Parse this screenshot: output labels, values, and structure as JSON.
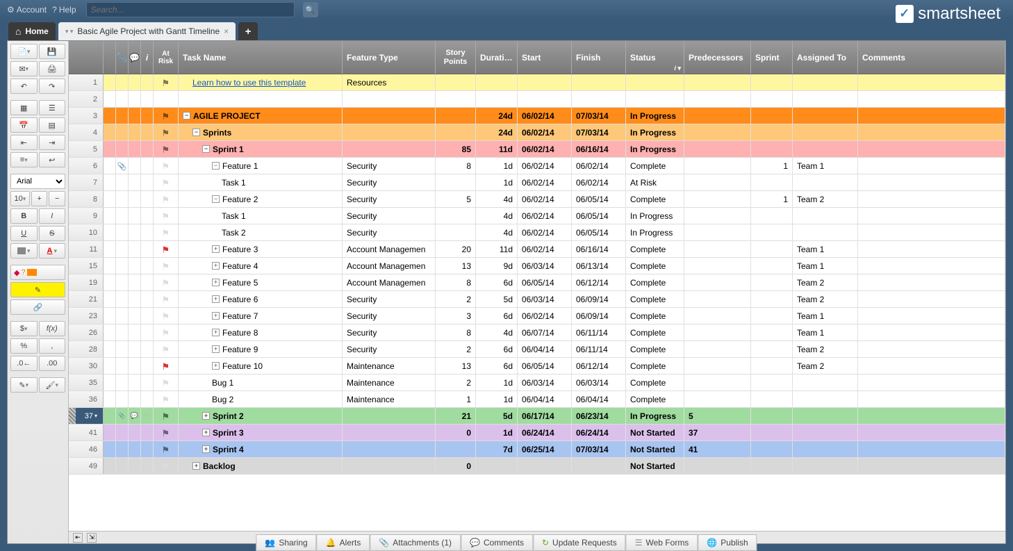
{
  "topbar": {
    "account": "Account",
    "help": "Help",
    "search_placeholder": "Search..."
  },
  "logo_text": "smartsheet",
  "tabs": {
    "home": "Home",
    "sheet": "Basic Agile Project with Gantt Timeline"
  },
  "toolbar": {
    "font": "Arial",
    "size": "10"
  },
  "columns": {
    "atrisk": "At Risk",
    "taskname": "Task Name",
    "feature": "Feature Type",
    "story": "Story Points",
    "duration": "Durati…",
    "start": "Start",
    "finish": "Finish",
    "status": "Status",
    "pred": "Predecessors",
    "sprint": "Sprint",
    "assigned": "Assigned To",
    "comments": "Comments"
  },
  "row_colors": {
    "yellow": "#fff7a0",
    "orange": "#ff8c1a",
    "lightorange": "#ffc878",
    "pink": "#ffb0b0",
    "green": "#a0dba0",
    "purple": "#dcc0ec",
    "blue": "#a8c4f0",
    "gray": "#d8d8d8",
    "white": "#ffffff"
  },
  "rows": [
    {
      "n": "1",
      "bg": "yellow",
      "flag": "colored",
      "task": "Learn how to use this template",
      "link": true,
      "indent": 1,
      "feature": "Resources"
    },
    {
      "n": "2",
      "bg": "white"
    },
    {
      "n": "3",
      "bg": "orange",
      "bold": true,
      "flag": "colored",
      "exp": "-",
      "task": "AGILE PROJECT",
      "indent": 0,
      "duration": "24d",
      "start": "06/02/14",
      "finish": "07/03/14",
      "status": "In Progress"
    },
    {
      "n": "4",
      "bg": "lightorange",
      "bold": true,
      "flag": "colored",
      "exp": "-",
      "task": "Sprints",
      "indent": 1,
      "duration": "24d",
      "start": "06/02/14",
      "finish": "07/03/14",
      "status": "In Progress"
    },
    {
      "n": "5",
      "bg": "pink",
      "bold": true,
      "flag": "colored",
      "exp": "-",
      "task": "Sprint 1",
      "indent": 2,
      "story": "85",
      "duration": "11d",
      "start": "06/02/14",
      "finish": "06/16/14",
      "status": "In Progress"
    },
    {
      "n": "6",
      "bg": "white",
      "attach": true,
      "flag": "white",
      "exp": "-",
      "task": "Feature 1",
      "indent": 3,
      "feature": "Security",
      "story": "8",
      "duration": "1d",
      "start": "06/02/14",
      "finish": "06/02/14",
      "status": "Complete",
      "sprint": "1",
      "assigned": "Team 1"
    },
    {
      "n": "7",
      "bg": "white",
      "flag": "white",
      "task": "Task 1",
      "indent": 4,
      "feature": "Security",
      "duration": "1d",
      "start": "06/02/14",
      "finish": "06/02/14",
      "status": "At Risk"
    },
    {
      "n": "8",
      "bg": "white",
      "flag": "white",
      "exp": "-",
      "task": "Feature 2",
      "indent": 3,
      "feature": "Security",
      "story": "5",
      "duration": "4d",
      "start": "06/02/14",
      "finish": "06/05/14",
      "status": "Complete",
      "sprint": "1",
      "assigned": "Team 2"
    },
    {
      "n": "9",
      "bg": "white",
      "flag": "white",
      "task": "Task 1",
      "indent": 4,
      "feature": "Security",
      "duration": "4d",
      "start": "06/02/14",
      "finish": "06/05/14",
      "status": "In Progress"
    },
    {
      "n": "10",
      "bg": "white",
      "flag": "white",
      "task": "Task 2",
      "indent": 4,
      "feature": "Security",
      "duration": "4d",
      "start": "06/02/14",
      "finish": "06/05/14",
      "status": "In Progress"
    },
    {
      "n": "11",
      "bg": "white",
      "flag": "red",
      "exp": "+",
      "task": "Feature 3",
      "indent": 3,
      "feature": "Account Managemen",
      "story": "20",
      "duration": "11d",
      "start": "06/02/14",
      "finish": "06/16/14",
      "status": "Complete",
      "assigned": "Team 1"
    },
    {
      "n": "15",
      "bg": "white",
      "flag": "white",
      "exp": "+",
      "task": "Feature 4",
      "indent": 3,
      "feature": "Account Managemen",
      "story": "13",
      "duration": "9d",
      "start": "06/03/14",
      "finish": "06/13/14",
      "status": "Complete",
      "assigned": "Team 1"
    },
    {
      "n": "19",
      "bg": "white",
      "flag": "white",
      "exp": "+",
      "task": "Feature 5",
      "indent": 3,
      "feature": "Account Managemen",
      "story": "8",
      "duration": "6d",
      "start": "06/05/14",
      "finish": "06/12/14",
      "status": "Complete",
      "assigned": "Team 2"
    },
    {
      "n": "21",
      "bg": "white",
      "flag": "white",
      "exp": "+",
      "task": "Feature 6",
      "indent": 3,
      "feature": "Security",
      "story": "2",
      "duration": "5d",
      "start": "06/03/14",
      "finish": "06/09/14",
      "status": "Complete",
      "assigned": "Team 2"
    },
    {
      "n": "23",
      "bg": "white",
      "flag": "white",
      "exp": "+",
      "task": "Feature 7",
      "indent": 3,
      "feature": "Security",
      "story": "3",
      "duration": "6d",
      "start": "06/02/14",
      "finish": "06/09/14",
      "status": "Complete",
      "assigned": "Team 1"
    },
    {
      "n": "26",
      "bg": "white",
      "flag": "white",
      "exp": "+",
      "task": "Feature 8",
      "indent": 3,
      "feature": "Security",
      "story": "8",
      "duration": "4d",
      "start": "06/07/14",
      "finish": "06/11/14",
      "status": "Complete",
      "assigned": "Team 1"
    },
    {
      "n": "28",
      "bg": "white",
      "flag": "white",
      "exp": "+",
      "task": "Feature 9",
      "indent": 3,
      "feature": "Security",
      "story": "2",
      "duration": "6d",
      "start": "06/04/14",
      "finish": "06/11/14",
      "status": "Complete",
      "assigned": "Team 2"
    },
    {
      "n": "30",
      "bg": "white",
      "flag": "red",
      "exp": "+",
      "task": "Feature 10",
      "indent": 3,
      "feature": "Maintenance",
      "story": "13",
      "duration": "6d",
      "start": "06/05/14",
      "finish": "06/12/14",
      "status": "Complete",
      "assigned": "Team 2"
    },
    {
      "n": "35",
      "bg": "white",
      "flag": "white",
      "task": "Bug 1",
      "indent": 3,
      "feature": "Maintenance",
      "story": "2",
      "duration": "1d",
      "start": "06/03/14",
      "finish": "06/03/14",
      "status": "Complete"
    },
    {
      "n": "36",
      "bg": "white",
      "flag": "white",
      "task": "Bug 2",
      "indent": 3,
      "feature": "Maintenance",
      "story": "1",
      "duration": "1d",
      "start": "06/04/14",
      "finish": "06/04/14",
      "status": "Complete"
    },
    {
      "n": "37",
      "bg": "green",
      "bold": true,
      "active": true,
      "flag": "colored",
      "exp": "+",
      "task": "Sprint 2",
      "indent": 2,
      "story": "21",
      "duration": "5d",
      "start": "06/17/14",
      "finish": "06/23/14",
      "status": "In Progress",
      "pred": "5"
    },
    {
      "n": "41",
      "bg": "purple",
      "bold": true,
      "flag": "colored",
      "exp": "+",
      "task": "Sprint 3",
      "indent": 2,
      "story": "0",
      "duration": "1d",
      "start": "06/24/14",
      "finish": "06/24/14",
      "status": "Not Started",
      "pred": "37"
    },
    {
      "n": "46",
      "bg": "blue",
      "bold": true,
      "flag": "colored",
      "exp": "+",
      "task": "Sprint 4",
      "indent": 2,
      "duration": "7d",
      "start": "06/25/14",
      "finish": "07/03/14",
      "status": "Not Started",
      "pred": "41"
    },
    {
      "n": "49",
      "bg": "gray",
      "bold": true,
      "flag": "white",
      "exp": "+",
      "task": "Backlog",
      "indent": 1,
      "story": "0",
      "status": "Not Started"
    }
  ],
  "bottom_tabs": {
    "sharing": "Sharing",
    "alerts": "Alerts",
    "attachments": "Attachments (1)",
    "comments": "Comments",
    "update": "Update Requests",
    "webforms": "Web Forms",
    "publish": "Publish"
  }
}
